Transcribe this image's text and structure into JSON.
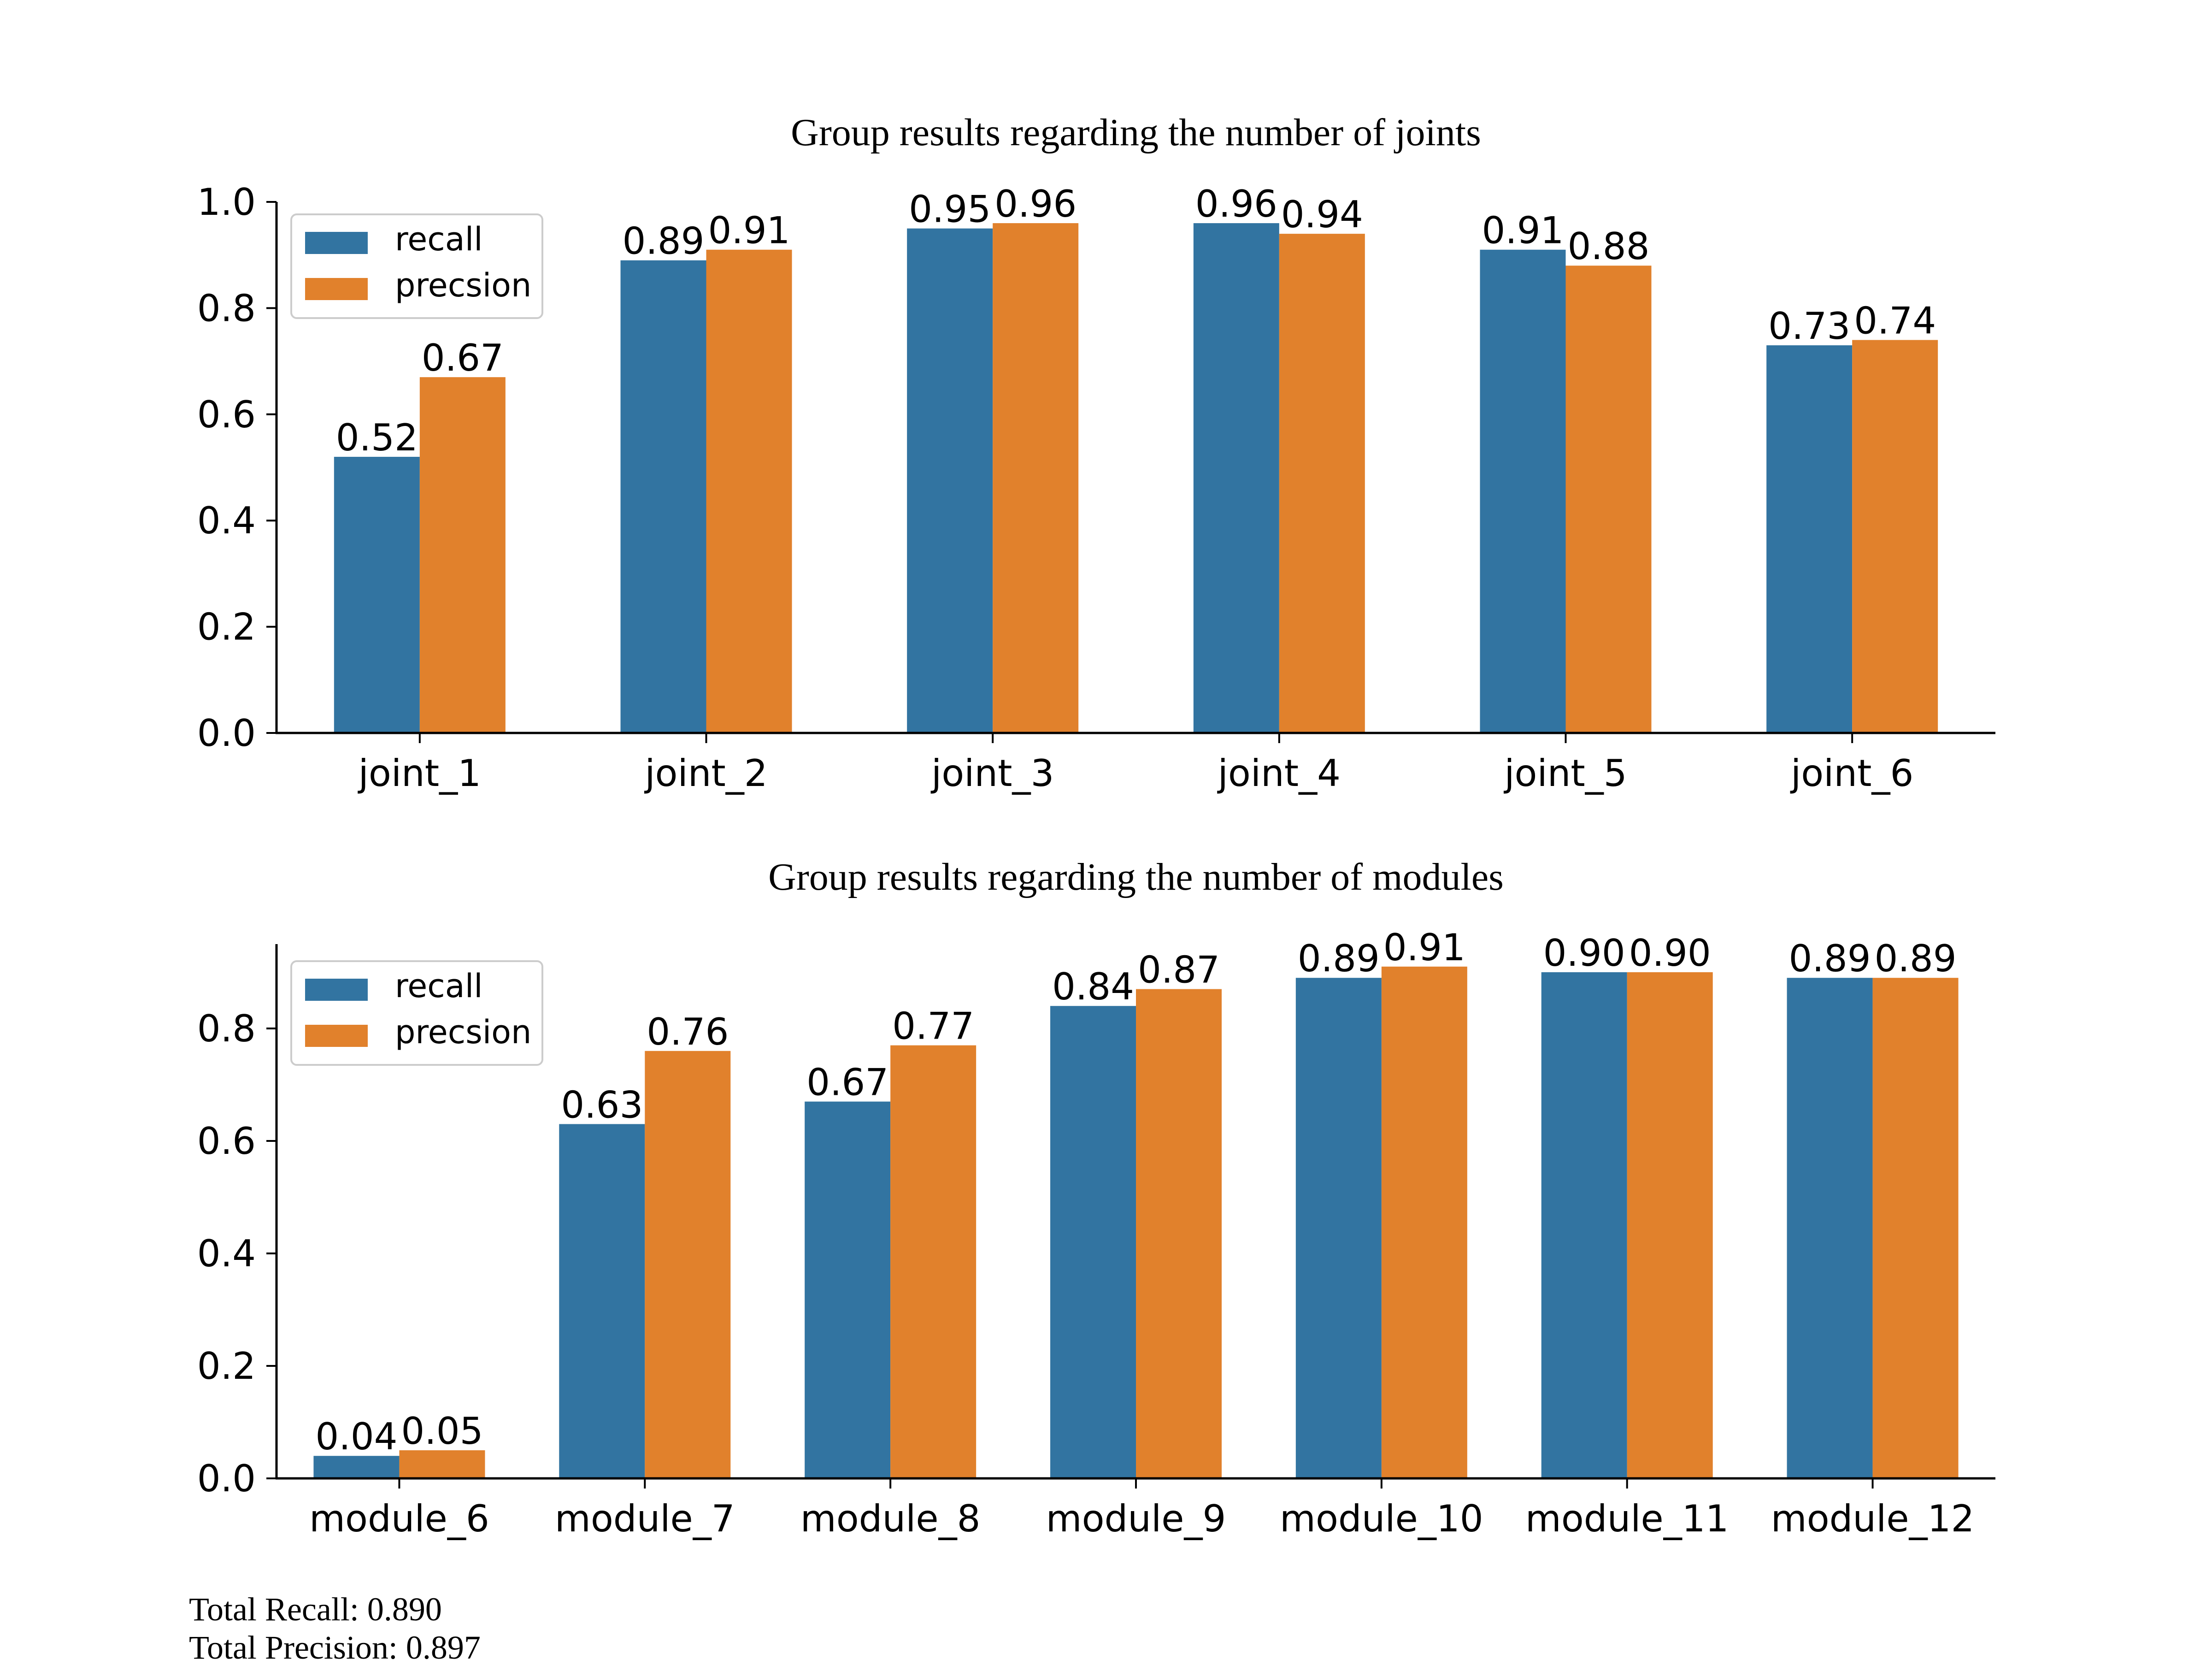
{
  "colors": {
    "recall": "#3274a1",
    "precision": "#e1812c"
  },
  "chart_data": [
    {
      "type": "bar",
      "title": "Group results regarding the number of joints",
      "categories": [
        "joint_1",
        "joint_2",
        "joint_3",
        "joint_4",
        "joint_5",
        "joint_6"
      ],
      "series": [
        {
          "name": "recall",
          "values": [
            0.52,
            0.89,
            0.95,
            0.96,
            0.91,
            0.73
          ],
          "labels": [
            "0.52",
            "0.89",
            "0.95",
            "0.96",
            "0.91",
            "0.73"
          ]
        },
        {
          "name": "precsion",
          "values": [
            0.67,
            0.91,
            0.96,
            0.94,
            0.88,
            0.74
          ],
          "labels": [
            "0.67",
            "0.91",
            "0.96",
            "0.94",
            "0.88",
            "0.74"
          ]
        }
      ],
      "ylim": [
        0,
        1.0
      ],
      "yticks": [
        "0.0",
        "0.2",
        "0.4",
        "0.6",
        "0.8",
        "1.0"
      ],
      "legend": "top-left",
      "grid": false
    },
    {
      "type": "bar",
      "title": "Group results regarding the number of modules",
      "categories": [
        "module_6",
        "module_7",
        "module_8",
        "module_9",
        "module_10",
        "module_11",
        "module_12"
      ],
      "series": [
        {
          "name": "recall",
          "values": [
            0.04,
            0.63,
            0.67,
            0.84,
            0.89,
            0.9,
            0.89
          ],
          "labels": [
            "0.04",
            "0.63",
            "0.67",
            "0.84",
            "0.89",
            "0.90",
            "0.89"
          ]
        },
        {
          "name": "precsion",
          "values": [
            0.05,
            0.76,
            0.77,
            0.87,
            0.91,
            0.9,
            0.89
          ],
          "labels": [
            "0.05",
            "0.76",
            "0.77",
            "0.87",
            "0.91",
            "0.90",
            "0.89"
          ]
        }
      ],
      "ylim": [
        0,
        0.95
      ],
      "yticks": [
        "0.0",
        "0.2",
        "0.4",
        "0.6",
        "0.8"
      ],
      "legend": "top-left",
      "grid": false
    }
  ],
  "footer": {
    "total_recall": "Total Recall: 0.890",
    "total_precision": "Total Precision: 0.897"
  }
}
